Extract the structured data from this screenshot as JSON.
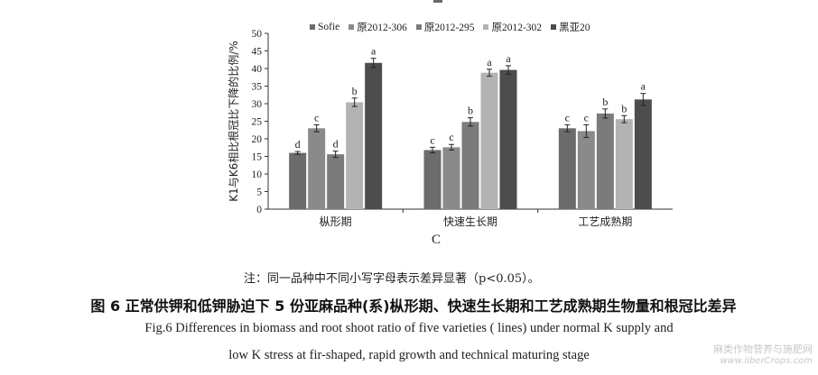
{
  "chart_data": {
    "type": "bar",
    "title": "",
    "panel_label": "C",
    "ylabel": "K1与K6相比根冠比下降的比例/%",
    "xlabel": "",
    "ylim": [
      0,
      50
    ],
    "yticks": [
      0,
      5,
      10,
      15,
      20,
      25,
      30,
      35,
      40,
      45,
      50
    ],
    "grid": false,
    "legend_position": "top",
    "categories": [
      "枞形期",
      "快速生长期",
      "工艺成熟期"
    ],
    "series": [
      {
        "name": "Sofie",
        "color": "#6b6b6b",
        "values": [
          16.0,
          16.8,
          23.0
        ],
        "errors": [
          0.4,
          0.8,
          1.0
        ],
        "letters": [
          "d",
          "c",
          "c"
        ]
      },
      {
        "name": "原2012-306",
        "color": "#8a8a8a",
        "values": [
          23.0,
          17.6,
          22.2
        ],
        "errors": [
          1.0,
          0.8,
          1.8
        ],
        "letters": [
          "c",
          "c",
          "c"
        ]
      },
      {
        "name": "原2012-295",
        "color": "#7b7b7b",
        "values": [
          15.6,
          24.8,
          27.2
        ],
        "errors": [
          0.9,
          1.2,
          1.3
        ],
        "letters": [
          "d",
          "b",
          "b"
        ]
      },
      {
        "name": "原2012-302",
        "color": "#b3b3b3",
        "values": [
          30.4,
          38.8,
          25.6
        ],
        "errors": [
          1.2,
          1.0,
          1.0
        ],
        "letters": [
          "b",
          "a",
          "b"
        ]
      },
      {
        "name": "黑亚20",
        "color": "#4d4d4d",
        "values": [
          41.6,
          39.6,
          31.2
        ],
        "errors": [
          1.3,
          1.2,
          1.7
        ],
        "letters": [
          "a",
          "a",
          "a"
        ]
      }
    ]
  },
  "note": "注：同一品种中不同小写字母表示差异显著（p<0.05）。",
  "caption": {
    "cn": "图 6   正常供钾和低钾胁迫下 5 份亚麻品种(系)枞形期、快速生长期和工艺成熟期生物量和根冠比差异",
    "en_line1": "Fig.6   Differences in biomass and root shoot ratio of five varieties ( lines)  under normal K supply and",
    "en_line2": "low K stress at fir-shaped, rapid growth and technical maturing stage"
  },
  "watermark": {
    "line1": "麻类作物营养与施肥网",
    "line2": "www.liberCrops.com"
  }
}
